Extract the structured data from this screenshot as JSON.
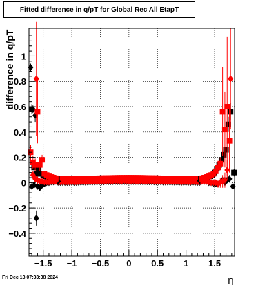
{
  "title": "Fitted difference in q/pT for Global Rec All EtapT",
  "timestamp": "Fri Dec 13 07:33:38 2024",
  "chart_data": {
    "type": "scatter",
    "xlabel": "η",
    "ylabel": "difference in q/pT",
    "xlim": [
      -1.75,
      1.85
    ],
    "ylim": [
      -0.58,
      1.22
    ],
    "xticks": [
      -1.5,
      -1,
      -0.5,
      0,
      0.5,
      1,
      1.5
    ],
    "xtick_labels": [
      "−1.5",
      "−1",
      "−0.5",
      "0",
      "0.5",
      "1",
      "1.5"
    ],
    "yticks": [
      -0.4,
      -0.2,
      0,
      0.2,
      0.4,
      0.6,
      0.8,
      1
    ],
    "ytick_labels": [
      "−0.4",
      "−0.2",
      "0",
      "0.2",
      "0.4",
      "0.6",
      "0.8",
      "1"
    ],
    "grid": true,
    "series": [
      {
        "marker": "diamond",
        "color": "#000000",
        "points": [
          {
            "x": -1.72,
            "y": 0.91,
            "err": 0.03
          },
          {
            "x": -1.68,
            "y": 0.58,
            "err": 0.03
          },
          {
            "x": -1.64,
            "y": 0.53,
            "err": 0.05
          },
          {
            "x": -1.62,
            "y": -0.28,
            "err": 0.06
          },
          {
            "x": -1.7,
            "y": -0.03,
            "err": 0.01
          },
          {
            "x": -1.66,
            "y": -0.02,
            "err": 0.01
          },
          {
            "x": -1.6,
            "y": -0.03,
            "err": 0.02
          },
          {
            "x": -1.56,
            "y": -0.04,
            "err": 0.02
          },
          {
            "x": -1.52,
            "y": -0.02,
            "err": 0.01
          },
          {
            "x": -1.48,
            "y": -0.01,
            "err": 0.01
          },
          {
            "x": -1.44,
            "y": 0.0,
            "err": 0.005
          },
          {
            "x": -1.4,
            "y": 0.0,
            "err": 0.005
          },
          {
            "x": -1.36,
            "y": 0.005,
            "err": 0.005
          },
          {
            "x": -1.32,
            "y": 0.005,
            "err": 0.005
          },
          {
            "x": -1.28,
            "y": 0.01,
            "err": 0.005
          },
          {
            "x": -1.24,
            "y": 0.01,
            "err": 0.005
          },
          {
            "x": 1.24,
            "y": 0.015,
            "err": 0.005
          },
          {
            "x": 1.28,
            "y": 0.015,
            "err": 0.005
          },
          {
            "x": 1.32,
            "y": 0.01,
            "err": 0.005
          },
          {
            "x": 1.36,
            "y": 0.01,
            "err": 0.005
          },
          {
            "x": 1.4,
            "y": 0.0,
            "err": 0.005
          },
          {
            "x": 1.44,
            "y": 0.0,
            "err": 0.01
          },
          {
            "x": 1.48,
            "y": -0.01,
            "err": 0.01
          },
          {
            "x": 1.52,
            "y": -0.01,
            "err": 0.01
          },
          {
            "x": 1.56,
            "y": -0.01,
            "err": 0.02
          },
          {
            "x": 1.6,
            "y": 0.0,
            "err": 0.02
          },
          {
            "x": 1.64,
            "y": 0.02,
            "err": 0.02
          },
          {
            "x": 1.68,
            "y": 0.0,
            "err": 0.02
          },
          {
            "x": 1.72,
            "y": 0.02,
            "err": 0.02
          },
          {
            "x": 1.76,
            "y": 0.03,
            "err": 0.03
          },
          {
            "x": 1.82,
            "y": -0.03,
            "err": 0.02
          }
        ]
      },
      {
        "marker": "square",
        "color": "#000000",
        "points": [
          {
            "x": -1.7,
            "y": 0.58,
            "err": 0.04
          },
          {
            "x": -1.66,
            "y": 0.12,
            "err": 0.02
          },
          {
            "x": -1.62,
            "y": 0.07,
            "err": 0.02
          },
          {
            "x": -1.58,
            "y": 0.1,
            "err": 0.02
          },
          {
            "x": -1.54,
            "y": 0.07,
            "err": 0.01
          },
          {
            "x": -1.5,
            "y": 0.06,
            "err": 0.01
          },
          {
            "x": -1.46,
            "y": 0.05,
            "err": 0.01
          },
          {
            "x": -1.42,
            "y": 0.04,
            "err": 0.005
          },
          {
            "x": -1.38,
            "y": 0.04,
            "err": 0.005
          },
          {
            "x": -1.34,
            "y": 0.035,
            "err": 0.005
          },
          {
            "x": -1.3,
            "y": 0.035,
            "err": 0.005
          },
          {
            "x": -1.26,
            "y": 0.03,
            "err": 0.005
          },
          {
            "x": 1.26,
            "y": 0.03,
            "err": 0.005
          },
          {
            "x": 1.3,
            "y": 0.035,
            "err": 0.005
          },
          {
            "x": 1.34,
            "y": 0.04,
            "err": 0.005
          },
          {
            "x": 1.38,
            "y": 0.045,
            "err": 0.005
          },
          {
            "x": 1.42,
            "y": 0.05,
            "err": 0.01
          },
          {
            "x": 1.46,
            "y": 0.06,
            "err": 0.01
          },
          {
            "x": 1.5,
            "y": 0.08,
            "err": 0.01
          },
          {
            "x": 1.54,
            "y": 0.11,
            "err": 0.02
          },
          {
            "x": 1.58,
            "y": 0.14,
            "err": 0.03
          },
          {
            "x": 1.62,
            "y": 0.18,
            "err": 0.04
          },
          {
            "x": 1.66,
            "y": 0.22,
            "err": 0.04
          },
          {
            "x": 1.7,
            "y": 0.26,
            "err": 0.05
          },
          {
            "x": 1.74,
            "y": 0.46,
            "err": 0.06
          },
          {
            "x": 1.78,
            "y": 0.56,
            "err": 0.07
          },
          {
            "x": 1.84,
            "y": 0.08,
            "err": 0.03
          }
        ]
      },
      {
        "marker": "diamond",
        "color": "#ff0000",
        "points": [
          {
            "x": -1.62,
            "y": 0.82,
            "err": 0.45
          },
          {
            "x": -1.68,
            "y": 0.06,
            "err": 0.03
          },
          {
            "x": -1.64,
            "y": 0.03,
            "err": 0.03
          },
          {
            "x": -1.6,
            "y": 0.02,
            "err": 0.03
          },
          {
            "x": -1.56,
            "y": 0.01,
            "err": 0.02
          },
          {
            "x": -1.52,
            "y": 0.01,
            "err": 0.02
          },
          {
            "x": -1.48,
            "y": 0.005,
            "err": 0.01
          },
          {
            "x": -1.44,
            "y": 0.005,
            "err": 0.01
          },
          {
            "x": -1.4,
            "y": 0.005,
            "err": 0.01
          },
          {
            "x": -1.36,
            "y": 0.01,
            "err": 0.01
          },
          {
            "x": -1.32,
            "y": 0.01,
            "err": 0.01
          },
          {
            "x": -1.28,
            "y": 0.01,
            "err": 0.01
          },
          {
            "x": 1.28,
            "y": 0.01,
            "err": 0.01
          },
          {
            "x": 1.32,
            "y": 0.01,
            "err": 0.01
          },
          {
            "x": 1.36,
            "y": 0.01,
            "err": 0.01
          },
          {
            "x": 1.4,
            "y": 0.005,
            "err": 0.01
          },
          {
            "x": 1.44,
            "y": 0.0,
            "err": 0.01
          },
          {
            "x": 1.48,
            "y": 0.0,
            "err": 0.02
          },
          {
            "x": 1.52,
            "y": 0.0,
            "err": 0.02
          },
          {
            "x": 1.56,
            "y": -0.01,
            "err": 0.03
          },
          {
            "x": 1.6,
            "y": 0.0,
            "err": 0.04
          },
          {
            "x": 1.64,
            "y": 0.01,
            "err": 0.05
          },
          {
            "x": 1.68,
            "y": 0.02,
            "err": 0.06
          },
          {
            "x": 1.72,
            "y": 0.1,
            "err": 0.08
          },
          {
            "x": 1.78,
            "y": 0.82,
            "err": 0.4
          }
        ]
      },
      {
        "marker": "square",
        "color": "#ff0000",
        "points": [
          {
            "x": -1.72,
            "y": 0.24,
            "err": 0.06
          },
          {
            "x": -1.68,
            "y": 0.16,
            "err": 0.05
          },
          {
            "x": -1.64,
            "y": 0.14,
            "err": 0.05
          },
          {
            "x": -1.6,
            "y": 0.56,
            "err": 0.25
          },
          {
            "x": -1.56,
            "y": 0.14,
            "err": 0.05
          },
          {
            "x": -1.52,
            "y": 0.18,
            "err": 0.04
          },
          {
            "x": -1.48,
            "y": 0.07,
            "err": 0.02
          },
          {
            "x": -1.44,
            "y": 0.06,
            "err": 0.01
          },
          {
            "x": -1.4,
            "y": 0.05,
            "err": 0.01
          },
          {
            "x": -1.36,
            "y": 0.045,
            "err": 0.01
          },
          {
            "x": -1.32,
            "y": 0.04,
            "err": 0.005
          },
          {
            "x": -1.28,
            "y": 0.035,
            "err": 0.005
          },
          {
            "x": 1.28,
            "y": 0.035,
            "err": 0.005
          },
          {
            "x": 1.32,
            "y": 0.04,
            "err": 0.005
          },
          {
            "x": 1.36,
            "y": 0.045,
            "err": 0.01
          },
          {
            "x": 1.4,
            "y": 0.05,
            "err": 0.01
          },
          {
            "x": 1.44,
            "y": 0.06,
            "err": 0.01
          },
          {
            "x": 1.48,
            "y": 0.07,
            "err": 0.02
          },
          {
            "x": 1.52,
            "y": 0.09,
            "err": 0.02
          },
          {
            "x": 1.56,
            "y": 0.12,
            "err": 0.04
          },
          {
            "x": 1.6,
            "y": 0.15,
            "err": 0.05
          },
          {
            "x": 1.64,
            "y": 0.56,
            "err": 0.35
          },
          {
            "x": 1.68,
            "y": 0.42,
            "err": 0.3
          },
          {
            "x": 1.72,
            "y": 0.6,
            "err": 0.55
          },
          {
            "x": 1.76,
            "y": 0.33,
            "err": 0.25
          }
        ]
      }
    ],
    "central_band": {
      "from": -1.24,
      "to": 1.24,
      "step": 0.04,
      "black_square": 0.03,
      "red_square": 0.035,
      "black_diamond": 0.005,
      "red_diamond": 0.01
    }
  }
}
